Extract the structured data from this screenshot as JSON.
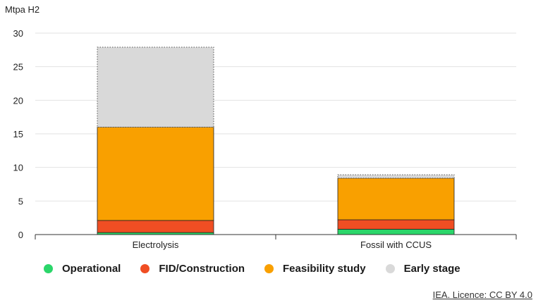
{
  "chart_data": {
    "type": "bar",
    "stacked": true,
    "ylabel": "Mtpa H2",
    "xlabel": "",
    "ylim": [
      0,
      30
    ],
    "yticks": [
      0,
      5,
      10,
      15,
      20,
      25,
      30
    ],
    "grid": true,
    "categories": [
      "Electrolysis",
      "Fossil with CCUS"
    ],
    "series": [
      {
        "name": "Operational",
        "color": "#2bd66a",
        "values": [
          0.3,
          0.8
        ]
      },
      {
        "name": "FID/Construction",
        "color": "#f04e23",
        "values": [
          1.8,
          1.4
        ]
      },
      {
        "name": "Feasibility study",
        "color": "#f9a000",
        "values": [
          13.9,
          6.2
        ]
      },
      {
        "name": "Early stage",
        "color": "#d9d9d9",
        "values": [
          11.9,
          0.5
        ]
      }
    ],
    "legend_position": "bottom"
  },
  "source": "IEA. Licence: CC BY 4.0"
}
